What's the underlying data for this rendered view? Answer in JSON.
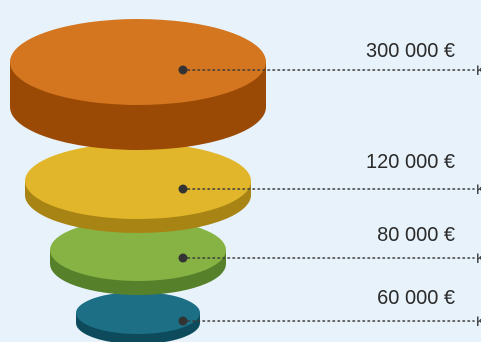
{
  "chart_data": {
    "type": "funnel",
    "title": "",
    "series": [
      {
        "value_label": "300 000 €",
        "value": 300000,
        "color": "#d4761f",
        "side_color": "#9a4a05"
      },
      {
        "value_label": "120 000 €",
        "value": 120000,
        "color": "#e2b62a",
        "side_color": "#a88414"
      },
      {
        "value_label": "80 000 €",
        "value": 80000,
        "color": "#86b344",
        "side_color": "#56802a"
      },
      {
        "value_label": "60 000 €",
        "value": 60000,
        "color": "#1c6f85",
        "side_color": "#0d4a5c"
      }
    ],
    "cut_label": "K"
  }
}
